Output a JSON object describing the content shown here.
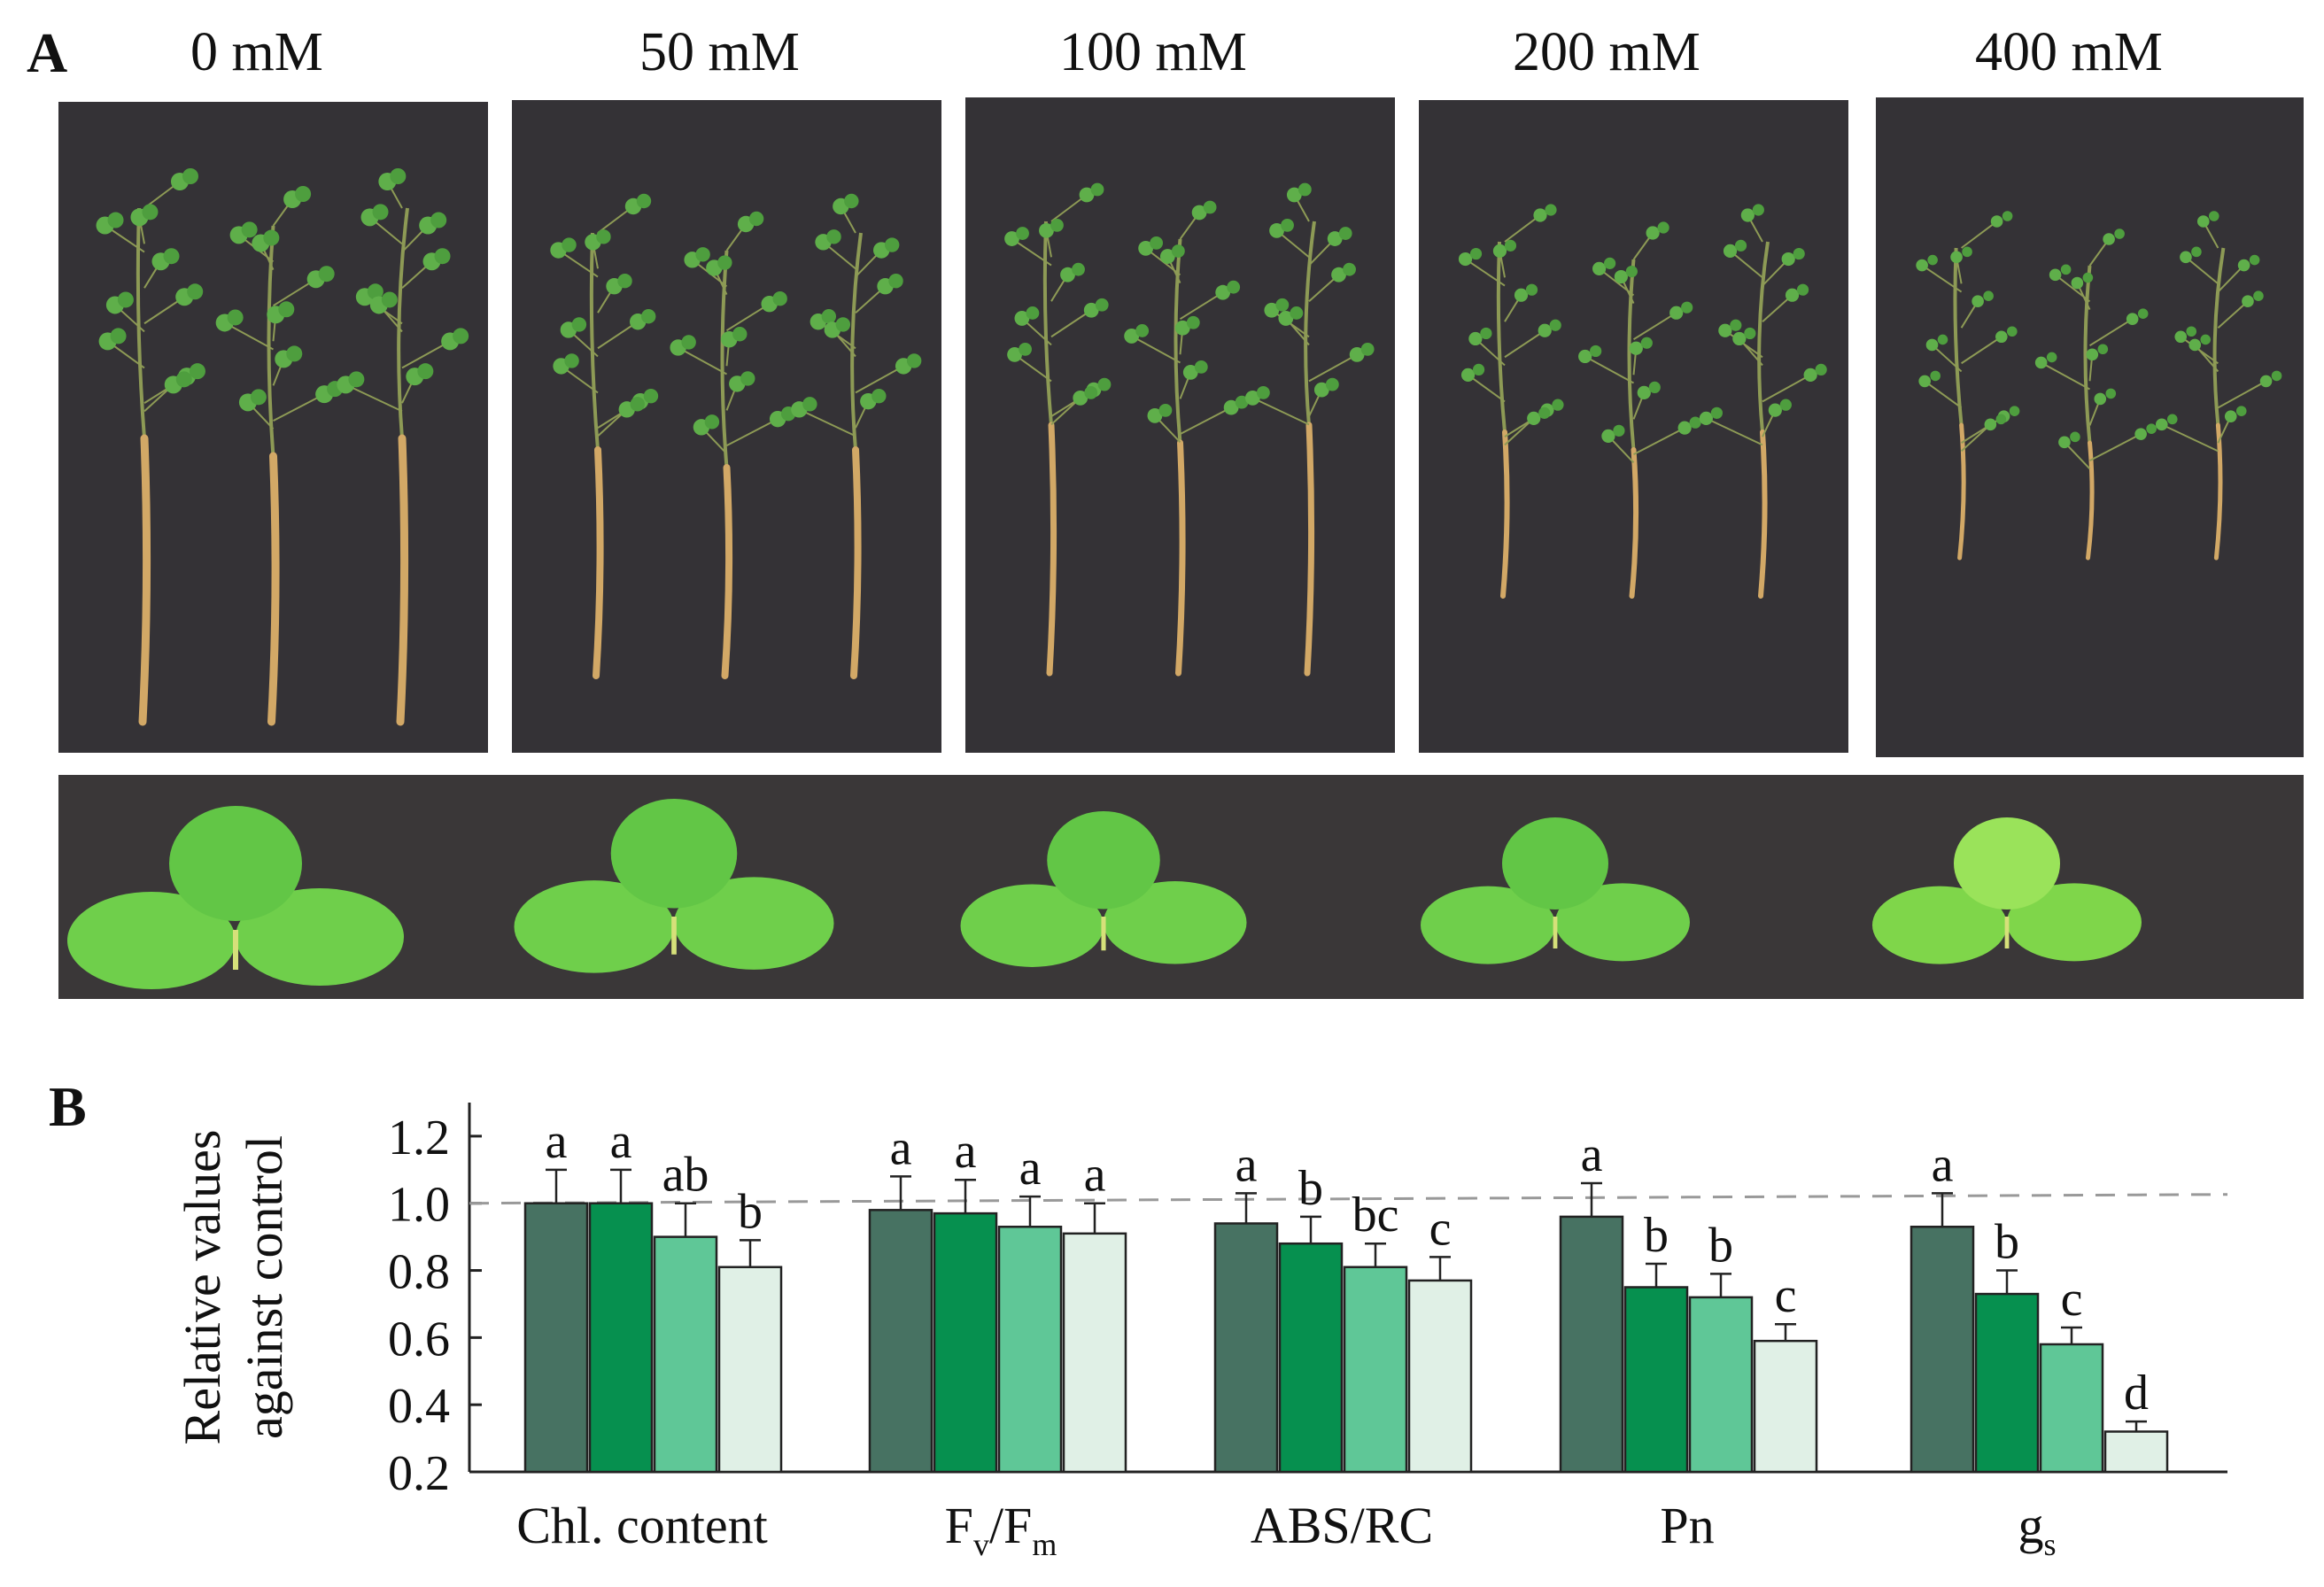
{
  "figure": {
    "panel_a_label": "A",
    "panel_b_label": "B",
    "concentrations": [
      "0 mM",
      "50 mM",
      "100 mM",
      "200 mM",
      "400 mM"
    ]
  },
  "chart_data": {
    "type": "bar",
    "categories": [
      "Chl. content",
      "Fv/Fm",
      "ABS/RC",
      "Pn",
      "gs"
    ],
    "series": [
      {
        "values": [
          1.0,
          0.98,
          0.94,
          0.96,
          0.93
        ],
        "errors": [
          0.1,
          0.1,
          0.09,
          0.1,
          0.1
        ],
        "color": "#477262"
      },
      {
        "values": [
          1.0,
          0.97,
          0.88,
          0.75,
          0.73
        ],
        "errors": [
          0.1,
          0.1,
          0.08,
          0.07,
          0.07
        ],
        "color": "#06904f"
      },
      {
        "values": [
          0.9,
          0.93,
          0.81,
          0.72,
          0.58
        ],
        "errors": [
          0.1,
          0.09,
          0.07,
          0.07,
          0.05
        ],
        "color": "#5fc797"
      },
      {
        "values": [
          0.81,
          0.91,
          0.77,
          0.59,
          0.32
        ],
        "errors": [
          0.08,
          0.09,
          0.07,
          0.05,
          0.03
        ],
        "color": "#e0f0e6"
      }
    ],
    "significance_letters": [
      [
        "a",
        "a",
        "ab",
        "b"
      ],
      [
        "a",
        "a",
        "a",
        "a"
      ],
      [
        "a",
        "b",
        "bc",
        "c"
      ],
      [
        "a",
        "b",
        "b",
        "c"
      ],
      [
        "a",
        "b",
        "c",
        "d"
      ]
    ],
    "ylabel_line1": "Relative values",
    "ylabel_line2": "against control",
    "yticks": [
      "0.2",
      "0.4",
      "0.6",
      "0.8",
      "1.0",
      "1.2"
    ],
    "ylim": [
      0.2,
      1.3
    ],
    "reference_line": 1.0,
    "grid": false
  }
}
